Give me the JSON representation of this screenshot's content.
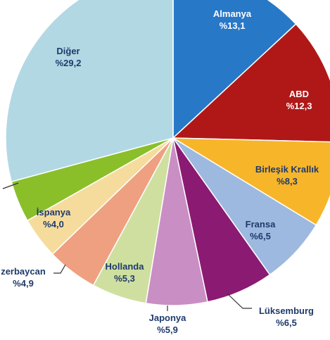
{
  "chart_data": {
    "type": "pie",
    "slices": [
      {
        "label": "Almanya",
        "display": "%13,1",
        "value": 13.1,
        "color": "#2878c8"
      },
      {
        "label": "ABD",
        "display": "%12,3",
        "value": 12.3,
        "color": "#b01818"
      },
      {
        "label": "Birleşik Krallık",
        "display": "%8,3",
        "value": 8.3,
        "color": "#f7b52a"
      },
      {
        "label": "Fransa",
        "display": "%6,5",
        "value": 6.5,
        "color": "#9db9df"
      },
      {
        "label": "Lüksemburg",
        "display": "%6,5",
        "value": 6.5,
        "color": "#8b1a72"
      },
      {
        "label": "Japonya",
        "display": "%5,9",
        "value": 5.9,
        "color": "#c98ec3"
      },
      {
        "label": "Hollanda",
        "display": "%5,3",
        "value": 5.3,
        "color": "#cfdfa0"
      },
      {
        "label": "zerbaycan",
        "display": "%4,9",
        "value": 4.9,
        "color": "#efa080"
      },
      {
        "label": "İspanya",
        "display": "%4,0",
        "value": 4.0,
        "color": "#f6dc9c"
      },
      {
        "label": "",
        "display": "",
        "value": 4.0,
        "color": "#8abf2a"
      },
      {
        "label": "Diğer",
        "display": "%29,2",
        "value": 29.2,
        "color": "#b2d8e4"
      }
    ]
  }
}
